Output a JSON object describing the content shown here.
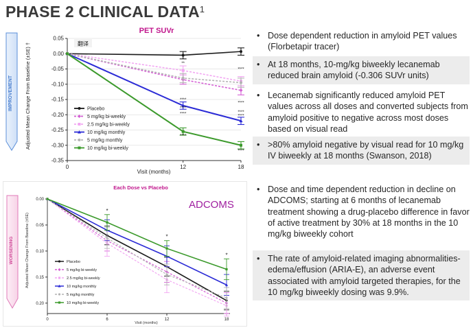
{
  "slide": {
    "title": "PHASE 2 CLINICAL DATA",
    "title_superscript": "1"
  },
  "colors": {
    "placebo": "#1a1a1a",
    "5_biweekly": "#d45fd4",
    "2_5_biweekly": "#f2a6f2",
    "10_monthly": "#2b2bd6",
    "5_monthly": "#b4b4b4",
    "10_biweekly": "#3c9a2c",
    "top_title": "#c0168c",
    "adcoms_label": "#a020a0",
    "improvement_arrow": "#5b8fd9",
    "worsening_arrow": "#e07ab8"
  },
  "chart_data": [
    {
      "type": "line",
      "title": "PET SUVr",
      "overlay_tag": "翻译",
      "side_label": "IMPROVEMENT",
      "xlabel": "Visit (months)",
      "ylabel": "Adjusted Mean Change From Baseline (±SE) †",
      "x": [
        0,
        12,
        18
      ],
      "xticks": [
        "0",
        "12",
        "18"
      ],
      "ylim": [
        -0.35,
        0.05
      ],
      "yticks": [
        "0.05",
        "0.00",
        "-0.05",
        "-0.10",
        "-0.15",
        "-0.20",
        "-0.25",
        "-0.30",
        "-0.35"
      ],
      "legend_position": "bottom-left",
      "significance_marks": [
        "**",
        "****",
        "****",
        "****",
        "****",
        "****",
        "****",
        "****",
        "****",
        "****"
      ],
      "series": [
        {
          "name": "Placebo",
          "values": [
            0,
            -0.005,
            0.007
          ],
          "se": [
            0,
            0.012,
            0.012
          ]
        },
        {
          "name": "5 mg/kg bi-weekly",
          "values": [
            0,
            -0.085,
            -0.12
          ],
          "se": [
            0,
            0.015,
            0.015
          ]
        },
        {
          "name": "2.5 mg/kg bi-weekly",
          "values": [
            0,
            -0.055,
            -0.09
          ],
          "se": [
            0,
            0.015,
            0.015
          ]
        },
        {
          "name": "10 mg/kg monthly",
          "values": [
            0,
            -0.17,
            -0.22
          ],
          "se": [
            0,
            0.012,
            0.012
          ]
        },
        {
          "name": "5 mg/kg monthly",
          "values": [
            0,
            -0.08,
            -0.095
          ],
          "se": [
            0,
            0.015,
            0.015
          ]
        },
        {
          "name": "10 mg/kg bi-weekly",
          "values": [
            0,
            -0.255,
            -0.3
          ],
          "se": [
            0,
            0.012,
            0.012
          ]
        }
      ]
    },
    {
      "type": "line",
      "title": "Each Dose vs Placebo",
      "panel_label": "ADCOMS",
      "side_label": "WORSENING",
      "xlabel": "Visit (months)",
      "ylabel": "Adjusted Mean Change From Baseline (±SE)",
      "x": [
        0,
        6,
        12,
        18
      ],
      "xticks": [
        "0",
        "6",
        "12",
        "18"
      ],
      "ylim": [
        0,
        0.22
      ],
      "yticks": [
        "0.00",
        "0.05",
        "0.10",
        "0.15",
        "0.20"
      ],
      "legend_position": "bottom-left",
      "significance_marks": [
        "*",
        "*",
        "*"
      ],
      "series": [
        {
          "name": "Placebo",
          "values": [
            0,
            0.07,
            0.13,
            0.195
          ],
          "se": [
            0,
            0.018,
            0.018,
            0.018
          ]
        },
        {
          "name": "5 mg/kg bi-weekly",
          "values": [
            0,
            0.08,
            0.14,
            0.2
          ],
          "se": [
            0,
            0.02,
            0.02,
            0.02
          ]
        },
        {
          "name": "2.5 mg/kg bi-weekly",
          "values": [
            0,
            0.085,
            0.155,
            0.205
          ],
          "se": [
            0,
            0.025,
            0.025,
            0.02
          ]
        },
        {
          "name": "10 mg/kg monthly",
          "values": [
            0,
            0.06,
            0.11,
            0.165
          ],
          "se": [
            0,
            0.02,
            0.02,
            0.02
          ]
        },
        {
          "name": "5 mg/kg monthly",
          "values": [
            0,
            0.075,
            0.145,
            0.19
          ],
          "se": [
            0,
            0.02,
            0.02,
            0.02
          ]
        },
        {
          "name": "10 mg/kg bi-weekly",
          "values": [
            0,
            0.045,
            0.095,
            0.135
          ],
          "se": [
            0,
            0.015,
            0.015,
            0.02
          ]
        }
      ]
    }
  ],
  "bullets": [
    {
      "text": "Dose dependent reduction in amyloid PET values (Florbetapir tracer)",
      "shaded": false
    },
    {
      "text": "At 18 months, 10-mg/kg biweekly lecanemab reduced brain amyloid (-0.306 SUVr units)",
      "shaded": true
    },
    {
      "text": "Lecanemab significantly reduced amyloid PET values across all doses and converted subjects from amyloid positive to negative across most doses based on visual read",
      "shaded": false
    },
    {
      "text": ">80% amyloid negative by visual read for 10 mg/kg IV biweekly at 18 months (Swanson, 2018)",
      "shaded": true
    },
    {
      "text": "Dose and time dependent reduction in decline on ADCOMS; starting at 6 months of lecanemab treatment showing a drug-placebo difference in favor of active treatment by 30% at 18 months in the 10 mg/kg biweekly cohort",
      "shaded": false
    },
    {
      "text": "The rate of amyloid-related imaging abnormalities-edema/effusion (ARIA-E), an adverse event associated with amyloid targeted therapies, for the 10 mg/kg biweekly dosing was 9.9%.",
      "shaded": true
    }
  ],
  "bullet_symbol": "•"
}
